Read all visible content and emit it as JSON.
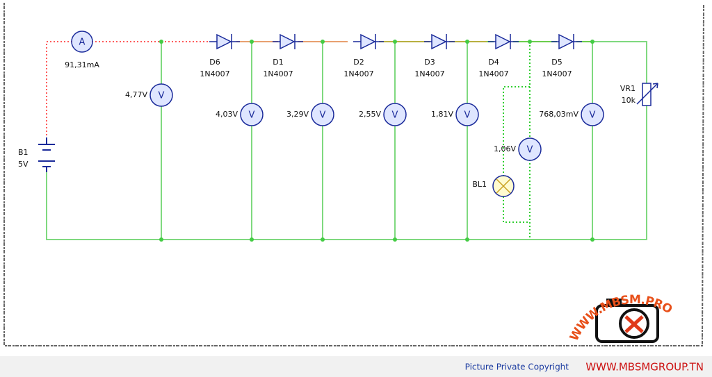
{
  "ammeter": {
    "symbol": "A",
    "reading": "91,31mA"
  },
  "battery": {
    "name": "B1",
    "value": "5V"
  },
  "diodes": [
    {
      "name": "D6",
      "model": "1N4007"
    },
    {
      "name": "D1",
      "model": "1N4007"
    },
    {
      "name": "D2",
      "model": "1N4007"
    },
    {
      "name": "D3",
      "model": "1N4007"
    },
    {
      "name": "D4",
      "model": "1N4007"
    },
    {
      "name": "D5",
      "model": "1N4007"
    }
  ],
  "voltmeters": [
    {
      "symbol": "V",
      "reading": "4,77V"
    },
    {
      "symbol": "V",
      "reading": "4,03V"
    },
    {
      "symbol": "V",
      "reading": "3,29V"
    },
    {
      "symbol": "V",
      "reading": "2,55V"
    },
    {
      "symbol": "V",
      "reading": "1,81V"
    },
    {
      "symbol": "V",
      "reading": "768,03mV"
    },
    {
      "symbol": "V",
      "reading": "1,06V"
    }
  ],
  "lamp": {
    "name": "BL1"
  },
  "potentiometer": {
    "name": "VR1",
    "value": "10k"
  },
  "watermark": "WWW.MBSM.PRO",
  "footer": {
    "notice": "Picture Private Copyright",
    "site": "WWW.MBSMGROUP.TN"
  }
}
